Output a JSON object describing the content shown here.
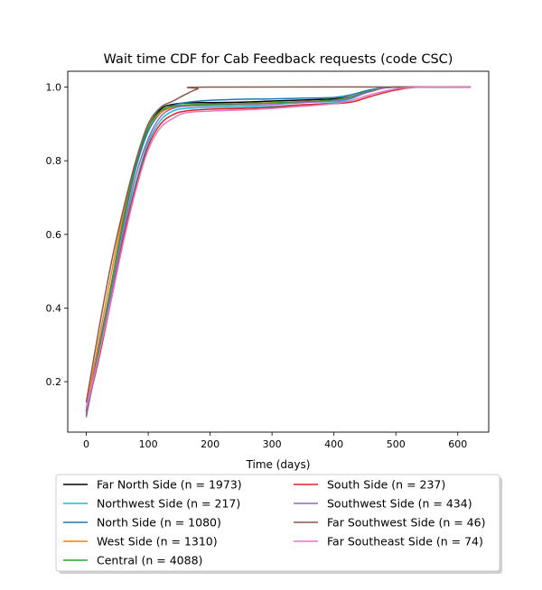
{
  "chart_data": {
    "type": "line",
    "title": "Wait time CDF for Cab Feedback  requests (code CSC)",
    "xlabel": "Time (days)",
    "ylabel": "",
    "xlim": [
      -30,
      650
    ],
    "ylim": [
      0.063,
      1.043
    ],
    "xticks": [
      0,
      100,
      200,
      300,
      400,
      500,
      600
    ],
    "yticks": [
      0.2,
      0.4,
      0.6,
      0.8,
      1.0
    ],
    "ytick_labels": [
      "0.2",
      "0.4",
      "0.6",
      "0.8",
      "1.0"
    ],
    "grid": false,
    "legend_placement": "bottom-center, below axes",
    "series": [
      {
        "name": "Far North Side (n = 1973)",
        "color": "#000000",
        "points": [
          [
            0,
            0.11
          ],
          [
            20,
            0.28
          ],
          [
            40,
            0.46
          ],
          [
            60,
            0.64
          ],
          [
            80,
            0.79
          ],
          [
            100,
            0.89
          ],
          [
            120,
            0.94
          ],
          [
            140,
            0.953
          ],
          [
            160,
            0.957
          ],
          [
            200,
            0.958
          ],
          [
            250,
            0.959
          ],
          [
            300,
            0.962
          ],
          [
            350,
            0.965
          ],
          [
            400,
            0.968
          ],
          [
            430,
            0.975
          ],
          [
            460,
            0.99
          ],
          [
            500,
            1.0
          ],
          [
            620,
            1.0
          ]
        ]
      },
      {
        "name": "Northwest Side (n = 217)",
        "color": "#17becf",
        "points": [
          [
            0,
            0.12
          ],
          [
            20,
            0.27
          ],
          [
            40,
            0.43
          ],
          [
            60,
            0.6
          ],
          [
            80,
            0.74
          ],
          [
            100,
            0.85
          ],
          [
            120,
            0.91
          ],
          [
            140,
            0.935
          ],
          [
            160,
            0.942
          ],
          [
            200,
            0.945
          ],
          [
            250,
            0.946
          ],
          [
            300,
            0.948
          ],
          [
            350,
            0.952
          ],
          [
            400,
            0.958
          ],
          [
            430,
            0.97
          ],
          [
            460,
            0.99
          ],
          [
            500,
            1.0
          ],
          [
            620,
            1.0
          ]
        ]
      },
      {
        "name": "North Side (n = 1080)",
        "color": "#1f77b4",
        "points": [
          [
            0,
            0.12
          ],
          [
            20,
            0.29
          ],
          [
            40,
            0.46
          ],
          [
            60,
            0.63
          ],
          [
            80,
            0.78
          ],
          [
            100,
            0.88
          ],
          [
            120,
            0.93
          ],
          [
            140,
            0.95
          ],
          [
            160,
            0.958
          ],
          [
            200,
            0.964
          ],
          [
            250,
            0.967
          ],
          [
            300,
            0.968
          ],
          [
            350,
            0.97
          ],
          [
            400,
            0.972
          ],
          [
            430,
            0.98
          ],
          [
            460,
            0.993
          ],
          [
            500,
            1.0
          ],
          [
            620,
            1.0
          ]
        ]
      },
      {
        "name": "West Side (n = 1310)",
        "color": "#ff7f0e",
        "points": [
          [
            0,
            0.13
          ],
          [
            20,
            0.31
          ],
          [
            40,
            0.49
          ],
          [
            60,
            0.66
          ],
          [
            80,
            0.8
          ],
          [
            100,
            0.89
          ],
          [
            120,
            0.93
          ],
          [
            140,
            0.945
          ],
          [
            160,
            0.95
          ],
          [
            200,
            0.953
          ],
          [
            250,
            0.955
          ],
          [
            300,
            0.958
          ],
          [
            350,
            0.961
          ],
          [
            400,
            0.965
          ],
          [
            430,
            0.975
          ],
          [
            460,
            0.99
          ],
          [
            500,
            1.0
          ],
          [
            620,
            1.0
          ]
        ]
      },
      {
        "name": "Central (n = 4088)",
        "color": "#2ca02c",
        "points": [
          [
            0,
            0.105
          ],
          [
            20,
            0.28
          ],
          [
            40,
            0.46
          ],
          [
            60,
            0.64
          ],
          [
            80,
            0.79
          ],
          [
            100,
            0.89
          ],
          [
            120,
            0.935
          ],
          [
            140,
            0.948
          ],
          [
            160,
            0.952
          ],
          [
            200,
            0.954
          ],
          [
            250,
            0.955
          ],
          [
            300,
            0.957
          ],
          [
            350,
            0.96
          ],
          [
            400,
            0.965
          ],
          [
            430,
            0.975
          ],
          [
            460,
            0.99
          ],
          [
            500,
            1.0
          ],
          [
            620,
            1.0
          ]
        ]
      },
      {
        "name": "South Side (n = 237)",
        "color": "#d62728",
        "points": [
          [
            0,
            0.12
          ],
          [
            20,
            0.26
          ],
          [
            40,
            0.42
          ],
          [
            60,
            0.59
          ],
          [
            80,
            0.73
          ],
          [
            100,
            0.84
          ],
          [
            120,
            0.9
          ],
          [
            140,
            0.925
          ],
          [
            160,
            0.935
          ],
          [
            200,
            0.94
          ],
          [
            250,
            0.942
          ],
          [
            300,
            0.945
          ],
          [
            350,
            0.952
          ],
          [
            400,
            0.955
          ],
          [
            430,
            0.96
          ],
          [
            460,
            0.975
          ],
          [
            500,
            0.992
          ],
          [
            540,
            1.0
          ],
          [
            620,
            1.0
          ]
        ]
      },
      {
        "name": "Southwest Side (n = 434)",
        "color": "#9467bd",
        "points": [
          [
            0,
            0.11
          ],
          [
            20,
            0.27
          ],
          [
            40,
            0.44
          ],
          [
            60,
            0.61
          ],
          [
            80,
            0.76
          ],
          [
            100,
            0.86
          ],
          [
            120,
            0.92
          ],
          [
            140,
            0.942
          ],
          [
            160,
            0.948
          ],
          [
            200,
            0.95
          ],
          [
            250,
            0.951
          ],
          [
            300,
            0.953
          ],
          [
            350,
            0.958
          ],
          [
            400,
            0.962
          ],
          [
            430,
            0.972
          ],
          [
            460,
            0.988
          ],
          [
            500,
            1.0
          ],
          [
            620,
            1.0
          ]
        ]
      },
      {
        "name": "Far Southwest Side (n = 46)",
        "color": "#8c564b",
        "points": [
          [
            0,
            0.145
          ],
          [
            20,
            0.34
          ],
          [
            40,
            0.52
          ],
          [
            60,
            0.67
          ],
          [
            80,
            0.8
          ],
          [
            100,
            0.9
          ],
          [
            120,
            0.945
          ],
          [
            140,
            0.962
          ],
          [
            160,
            0.98
          ],
          [
            180,
            0.995
          ],
          [
            200,
            1.0
          ],
          [
            620,
            1.0
          ]
        ]
      },
      {
        "name": "Far Southeast Side (n = 74)",
        "color": "#e377c2",
        "points": [
          [
            0,
            0.13
          ],
          [
            20,
            0.27
          ],
          [
            40,
            0.42
          ],
          [
            60,
            0.58
          ],
          [
            80,
            0.72
          ],
          [
            100,
            0.83
          ],
          [
            120,
            0.89
          ],
          [
            140,
            0.915
          ],
          [
            160,
            0.93
          ],
          [
            200,
            0.935
          ],
          [
            250,
            0.938
          ],
          [
            300,
            0.942
          ],
          [
            350,
            0.948
          ],
          [
            400,
            0.955
          ],
          [
            430,
            0.965
          ],
          [
            460,
            0.98
          ],
          [
            500,
            0.995
          ],
          [
            540,
            1.0
          ],
          [
            620,
            1.0
          ]
        ]
      }
    ]
  }
}
